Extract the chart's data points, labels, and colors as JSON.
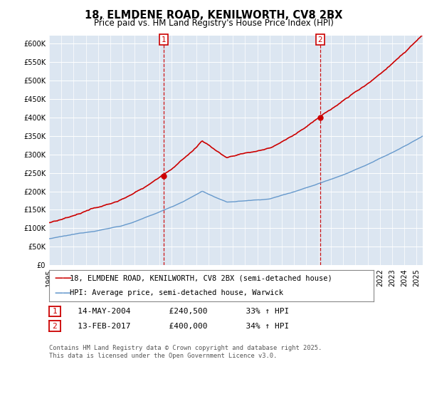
{
  "title": "18, ELMDENE ROAD, KENILWORTH, CV8 2BX",
  "subtitle": "Price paid vs. HM Land Registry's House Price Index (HPI)",
  "line1_color": "#cc0000",
  "line2_color": "#6699cc",
  "plot_bg": "#dce6f1",
  "legend_label1": "18, ELMDENE ROAD, KENILWORTH, CV8 2BX (semi-detached house)",
  "legend_label2": "HPI: Average price, semi-detached house, Warwick",
  "marker1_x": 2004.37,
  "marker1_y": 240500,
  "marker2_x": 2017.12,
  "marker2_y": 400000,
  "footer": "Contains HM Land Registry data © Crown copyright and database right 2025.\nThis data is licensed under the Open Government Licence v3.0.",
  "table_rows": [
    [
      "1",
      "14-MAY-2004",
      "£240,500",
      "33% ↑ HPI"
    ],
    [
      "2",
      "13-FEB-2017",
      "£400,000",
      "34% ↑ HPI"
    ]
  ],
  "ylim": [
    0,
    620000
  ],
  "yticks": [
    0,
    50000,
    100000,
    150000,
    200000,
    250000,
    300000,
    350000,
    400000,
    450000,
    500000,
    550000,
    600000
  ],
  "xlim": [
    1995,
    2025.5
  ]
}
